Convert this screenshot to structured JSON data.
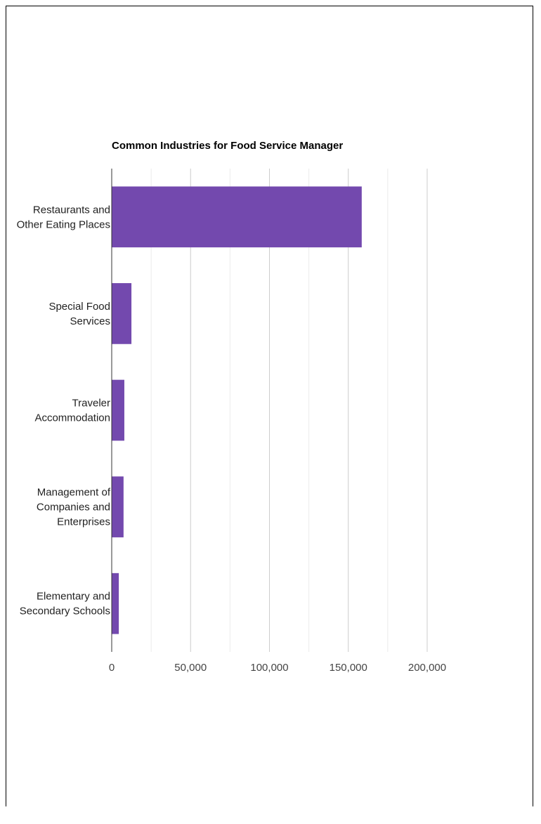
{
  "chart_data": {
    "type": "bar",
    "orientation": "horizontal",
    "title": "Common Industries for Food Service Manager",
    "xlabel": "",
    "ylabel": "",
    "categories": [
      [
        "Restaurants and",
        "Other Eating Places"
      ],
      [
        "Special Food",
        "Services"
      ],
      [
        "Traveler",
        "Accommodation"
      ],
      [
        "Management of",
        "Companies and",
        "Enterprises"
      ],
      [
        "Elementary and",
        "Secondary Schools"
      ]
    ],
    "values": [
      158500,
      12500,
      8000,
      7500,
      4500
    ],
    "xlim": [
      0,
      200000
    ],
    "x_ticks": [
      0,
      50000,
      100000,
      150000,
      200000
    ],
    "x_tick_labels": [
      "0",
      "50,000",
      "100,000",
      "150,000",
      "200,000"
    ],
    "minor_gridlines": true,
    "legend": "none",
    "bar_color": "#7349ae"
  }
}
